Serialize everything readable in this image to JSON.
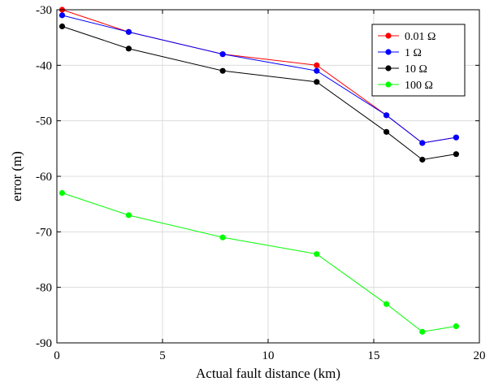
{
  "chart_data": {
    "type": "line",
    "xlabel": "Actual fault distance (km)",
    "ylabel": "error (m)",
    "xlim": [
      0,
      20
    ],
    "ylim": [
      -90,
      -30
    ],
    "xticks": [
      0,
      5,
      10,
      15,
      20
    ],
    "yticks": [
      -90,
      -80,
      -70,
      -60,
      -50,
      -40,
      -30
    ],
    "grid": true,
    "legend_position": "top-right",
    "x": [
      0.25,
      3.4,
      7.85,
      12.3,
      15.6,
      17.3,
      18.9
    ],
    "series": [
      {
        "name": "0.01 Ω",
        "color": "#ff0000",
        "values": [
          -30,
          -34,
          -38,
          -40,
          -49,
          -54,
          -53
        ]
      },
      {
        "name": "1 Ω",
        "color": "#0000ff",
        "values": [
          -31,
          -34,
          -38,
          -41,
          -49,
          -54,
          -53
        ]
      },
      {
        "name": "10 Ω",
        "color": "#000000",
        "values": [
          -33,
          -37,
          -41,
          -43,
          -52,
          -57,
          -56
        ]
      },
      {
        "name": "100 Ω",
        "color": "#00ff00",
        "values": [
          -63,
          -67,
          -71,
          -74,
          -83,
          -88,
          -87
        ]
      }
    ]
  }
}
